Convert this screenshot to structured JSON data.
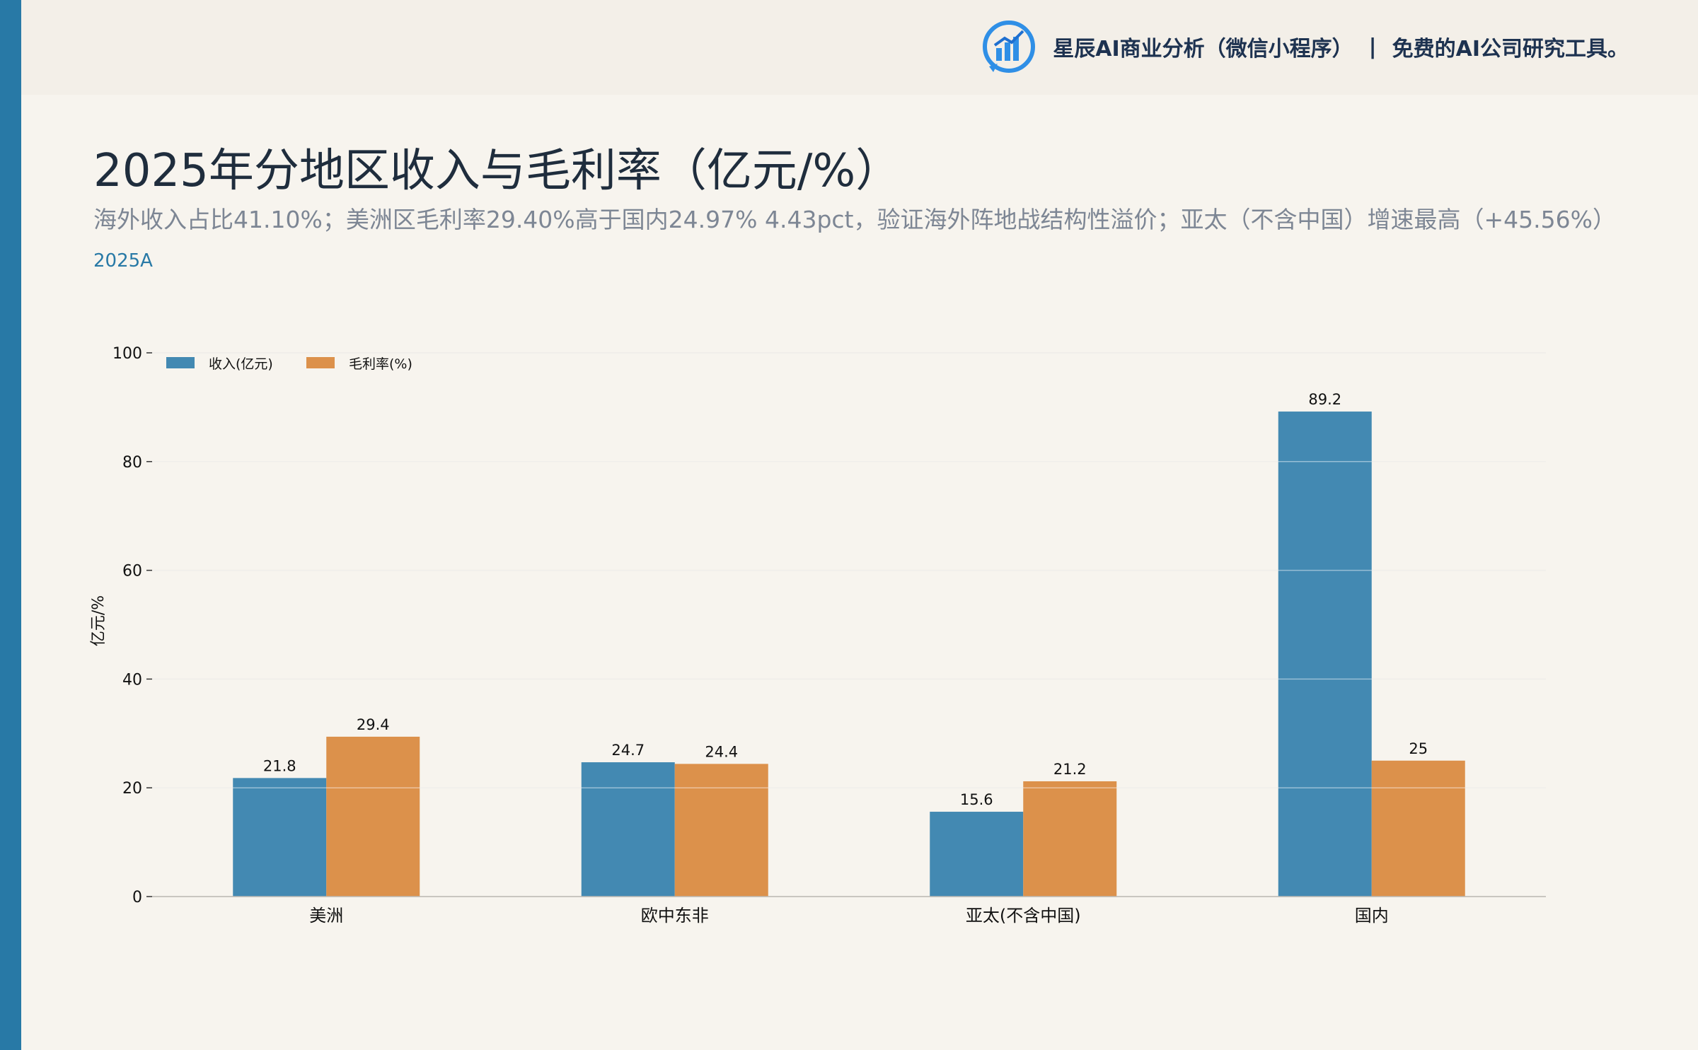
{
  "header": {
    "brand_name": "星辰AI商业分析（微信小程序）",
    "separator": "|",
    "brand_slogan": "免费的AI公司研究工具。",
    "logo_icon": "bar-chart-circle-logo-icon"
  },
  "page": {
    "title": "2025年分地区收入与毛利率（亿元/%）",
    "subtitle": "海外收入占比41.10%；美洲区毛利率29.40%高于国内24.97% 4.43pct，验证海外阵地战结构性溢价；亚太（不含中国）增速最高（+45.56%）",
    "period_tag": "2025A"
  },
  "colors": {
    "accent": "#2879a6",
    "series_revenue": "#4389b2",
    "series_margin": "#dc914b"
  },
  "chart_data": {
    "type": "bar",
    "categories": [
      "美洲",
      "欧中东非",
      "亚太(不含中国)",
      "国内"
    ],
    "series": [
      {
        "name": "收入(亿元)",
        "values": [
          21.8,
          24.7,
          15.6,
          89.2
        ],
        "labels": [
          "21.8",
          "24.7",
          "15.6",
          "89.2"
        ]
      },
      {
        "name": "毛利率(%)",
        "values": [
          29.4,
          24.4,
          21.2,
          25.0
        ],
        "labels": [
          "29.4",
          "24.4",
          "21.2",
          "25"
        ]
      }
    ],
    "ylabel": "亿元/%",
    "ylim": [
      0,
      100
    ],
    "yticks": [
      "0",
      "20",
      "40",
      "60",
      "80",
      "100"
    ],
    "grid": true,
    "legend_position": "top-left"
  }
}
